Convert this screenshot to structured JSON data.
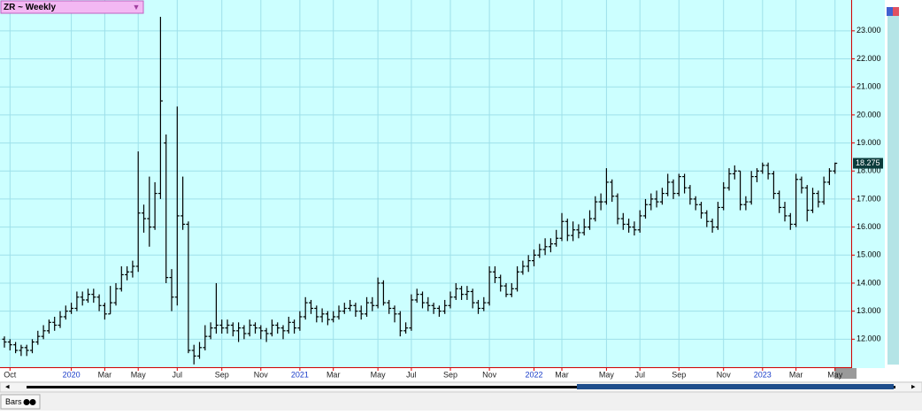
{
  "chart_data": {
    "type": "ohlc",
    "title": "ZR ~ Weekly",
    "tab": "Bars",
    "color": "#000000",
    "grid": true,
    "ylim": [
      11.0,
      24.1
    ],
    "yticks": [
      {
        "value": 12,
        "label": "12.000"
      },
      {
        "value": 13,
        "label": "13.000"
      },
      {
        "value": 14,
        "label": "14.000"
      },
      {
        "value": 15,
        "label": "15.000"
      },
      {
        "value": 16,
        "label": "16.000"
      },
      {
        "value": 17,
        "label": "17.000"
      },
      {
        "value": 18,
        "label": "18.000"
      },
      {
        "value": 19,
        "label": "19.000"
      },
      {
        "value": 20,
        "label": "20.000"
      },
      {
        "value": 21,
        "label": "21.000"
      },
      {
        "value": 22,
        "label": "22.000"
      },
      {
        "value": 23,
        "label": "23.000"
      }
    ],
    "xlim": [
      -1,
      150
    ],
    "xticks": [
      {
        "value": 1,
        "label": "Oct"
      },
      {
        "value": 12,
        "label": "2020"
      },
      {
        "value": 18,
        "label": "Mar"
      },
      {
        "value": 24,
        "label": "May"
      },
      {
        "value": 31,
        "label": "Jul"
      },
      {
        "value": 39,
        "label": "Sep"
      },
      {
        "value": 46,
        "label": "Nov"
      },
      {
        "value": 53,
        "label": "2021"
      },
      {
        "value": 59,
        "label": "Mar"
      },
      {
        "value": 67,
        "label": "May"
      },
      {
        "value": 73,
        "label": "Jul"
      },
      {
        "value": 80,
        "label": "Sep"
      },
      {
        "value": 87,
        "label": "Nov"
      },
      {
        "value": 95,
        "label": "2022"
      },
      {
        "value": 100,
        "label": "Mar"
      },
      {
        "value": 108,
        "label": "May"
      },
      {
        "value": 114,
        "label": "Jul"
      },
      {
        "value": 121,
        "label": "Sep"
      },
      {
        "value": 129,
        "label": "Nov"
      },
      {
        "value": 136,
        "label": "2023"
      },
      {
        "value": 142,
        "label": "Mar"
      },
      {
        "value": 149,
        "label": "May"
      }
    ],
    "open": [
      12.0,
      11.9,
      11.8,
      11.6,
      11.7,
      11.6,
      11.9,
      12.1,
      12.3,
      12.6,
      12.5,
      12.8,
      13.0,
      13.1,
      13.5,
      13.4,
      13.6,
      13.5,
      13.2,
      12.9,
      13.3,
      13.8,
      14.3,
      14.4,
      14.6,
      16.5,
      16.3,
      16.0,
      17.2,
      19.0,
      14.2,
      13.5,
      16.4,
      16.1,
      11.6,
      11.4,
      11.7,
      12.1,
      12.4,
      12.5,
      12.4,
      12.5,
      12.3,
      12.4,
      12.2,
      12.5,
      12.4,
      12.3,
      12.2,
      12.5,
      12.4,
      12.3,
      12.6,
      12.4,
      12.8,
      13.3,
      13.1,
      12.8,
      12.9,
      12.7,
      12.8,
      13.0,
      13.1,
      13.2,
      13.0,
      12.9,
      13.3,
      13.2,
      14.0,
      13.3,
      13.1,
      12.9,
      12.3,
      12.4,
      13.4,
      13.6,
      13.3,
      13.2,
      13.1,
      13.0,
      13.2,
      13.5,
      13.8,
      13.6,
      13.7,
      13.3,
      13.1,
      13.3,
      14.4,
      14.2,
      13.9,
      13.6,
      13.8,
      14.4,
      14.6,
      14.8,
      15.0,
      15.2,
      15.3,
      15.4,
      15.6,
      16.2,
      15.7,
      15.9,
      15.8,
      16.0,
      16.3,
      16.9,
      16.9,
      17.6,
      17.1,
      16.3,
      16.1,
      16.0,
      15.9,
      16.4,
      16.8,
      17.0,
      16.9,
      17.2,
      17.6,
      17.2,
      17.8,
      17.4,
      17.0,
      16.8,
      16.5,
      16.2,
      16.0,
      16.7,
      17.4,
      17.9,
      18.0,
      16.8,
      16.9,
      17.8,
      18.0,
      18.2,
      17.9,
      17.2,
      16.7,
      16.4,
      16.1,
      17.7,
      17.4,
      16.6,
      17.2,
      16.9,
      17.6,
      18.0
    ],
    "high": [
      12.1,
      12.0,
      11.9,
      11.8,
      11.8,
      12.0,
      12.3,
      12.5,
      12.7,
      12.8,
      13.0,
      13.2,
      13.3,
      13.7,
      13.7,
      13.8,
      13.8,
      13.6,
      13.3,
      13.9,
      14.0,
      14.6,
      14.6,
      14.8,
      18.7,
      16.8,
      17.8,
      17.6,
      23.5,
      19.3,
      14.5,
      20.3,
      17.8,
      16.2,
      11.8,
      11.9,
      12.5,
      12.6,
      14.0,
      12.7,
      12.7,
      12.6,
      12.6,
      12.5,
      12.7,
      12.6,
      12.5,
      12.4,
      12.7,
      12.6,
      12.5,
      12.8,
      12.7,
      13.0,
      13.5,
      13.4,
      13.2,
      13.1,
      13.0,
      13.0,
      13.2,
      13.3,
      13.4,
      13.3,
      13.2,
      13.5,
      13.5,
      14.2,
      14.1,
      13.4,
      13.2,
      13.0,
      12.6,
      13.6,
      13.8,
      13.7,
      13.5,
      13.3,
      13.2,
      13.4,
      13.7,
      14.0,
      13.9,
      13.9,
      13.8,
      13.4,
      13.5,
      14.6,
      14.6,
      14.3,
      14.0,
      14.0,
      14.6,
      14.8,
      15.0,
      15.2,
      15.4,
      15.6,
      15.6,
      15.9,
      16.5,
      16.3,
      16.2,
      16.1,
      16.3,
      16.6,
      17.1,
      17.2,
      18.1,
      17.7,
      17.2,
      16.5,
      16.3,
      16.2,
      16.6,
      17.0,
      17.2,
      17.3,
      17.4,
      17.9,
      17.7,
      17.9,
      17.9,
      17.5,
      17.1,
      16.9,
      16.6,
      16.3,
      16.9,
      17.6,
      18.1,
      18.2,
      18.0,
      17.1,
      18.0,
      18.1,
      18.3,
      18.3,
      18.0,
      17.3,
      16.9,
      16.5,
      17.9,
      17.8,
      17.5,
      17.4,
      17.3,
      17.8,
      18.1,
      18.3
    ],
    "low": [
      11.7,
      11.6,
      11.5,
      11.4,
      11.4,
      11.5,
      11.8,
      12.0,
      12.2,
      12.3,
      12.4,
      12.7,
      12.9,
      13.0,
      13.2,
      13.3,
      13.3,
      13.0,
      12.7,
      12.9,
      13.2,
      13.7,
      14.1,
      14.2,
      14.4,
      15.8,
      15.3,
      15.9,
      17.0,
      14.0,
      13.0,
      13.2,
      15.9,
      11.5,
      11.1,
      11.3,
      11.6,
      12.0,
      12.2,
      12.2,
      12.2,
      12.1,
      11.9,
      12.0,
      12.1,
      12.2,
      12.0,
      11.9,
      12.1,
      12.2,
      12.0,
      12.2,
      12.2,
      12.3,
      12.7,
      12.9,
      12.6,
      12.6,
      12.5,
      12.6,
      12.7,
      12.9,
      13.0,
      12.8,
      12.7,
      12.8,
      13.0,
      13.1,
      13.2,
      12.9,
      12.6,
      12.1,
      12.2,
      12.3,
      13.3,
      13.1,
      13.0,
      12.9,
      12.8,
      12.9,
      13.1,
      13.4,
      13.4,
      13.4,
      13.1,
      12.9,
      13.0,
      13.2,
      14.0,
      13.7,
      13.5,
      13.5,
      13.7,
      14.3,
      14.4,
      14.6,
      14.9,
      15.0,
      15.1,
      15.3,
      15.5,
      15.5,
      15.5,
      15.6,
      15.7,
      15.9,
      16.2,
      16.6,
      16.8,
      16.9,
      16.1,
      15.9,
      15.8,
      15.7,
      15.8,
      16.3,
      16.6,
      16.7,
      16.8,
      17.1,
      17.0,
      17.1,
      17.2,
      16.8,
      16.6,
      16.3,
      16.0,
      15.8,
      15.9,
      16.6,
      17.3,
      17.7,
      16.6,
      16.6,
      16.8,
      17.6,
      17.9,
      17.7,
      17.0,
      16.5,
      16.2,
      15.9,
      16.0,
      17.2,
      16.2,
      16.5,
      16.7,
      16.8,
      17.5,
      17.9
    ],
    "close": [
      11.9,
      11.8,
      11.6,
      11.7,
      11.6,
      11.9,
      12.1,
      12.3,
      12.6,
      12.5,
      12.8,
      13.0,
      13.1,
      13.5,
      13.4,
      13.6,
      13.5,
      13.2,
      12.9,
      13.3,
      13.8,
      14.3,
      14.4,
      14.6,
      16.5,
      16.3,
      16.0,
      17.2,
      20.5,
      14.2,
      13.5,
      16.4,
      16.1,
      11.6,
      11.4,
      11.7,
      12.1,
      12.4,
      12.5,
      12.4,
      12.5,
      12.3,
      12.4,
      12.2,
      12.5,
      12.4,
      12.3,
      12.2,
      12.5,
      12.4,
      12.3,
      12.6,
      12.4,
      12.8,
      13.3,
      13.1,
      12.8,
      12.9,
      12.7,
      12.8,
      13.0,
      13.1,
      13.2,
      13.0,
      12.9,
      13.3,
      13.2,
      14.0,
      13.3,
      13.1,
      12.9,
      12.3,
      12.4,
      13.4,
      13.6,
      13.3,
      13.2,
      13.1,
      13.0,
      13.2,
      13.5,
      13.8,
      13.6,
      13.7,
      13.3,
      13.1,
      13.3,
      14.4,
      14.2,
      13.9,
      13.6,
      13.8,
      14.4,
      14.6,
      14.8,
      15.0,
      15.2,
      15.3,
      15.4,
      15.6,
      16.2,
      15.7,
      15.9,
      15.8,
      16.0,
      16.3,
      16.9,
      16.9,
      17.6,
      17.1,
      16.3,
      16.1,
      16.0,
      15.9,
      16.4,
      16.8,
      17.0,
      16.9,
      17.2,
      17.6,
      17.2,
      17.8,
      17.4,
      17.0,
      16.8,
      16.5,
      16.2,
      16.0,
      16.7,
      17.4,
      17.9,
      18.0,
      16.8,
      16.9,
      17.8,
      18.0,
      18.2,
      17.9,
      17.2,
      16.7,
      16.4,
      16.1,
      17.7,
      17.4,
      16.6,
      17.2,
      16.9,
      17.6,
      18.0,
      18.275
    ]
  }
}
